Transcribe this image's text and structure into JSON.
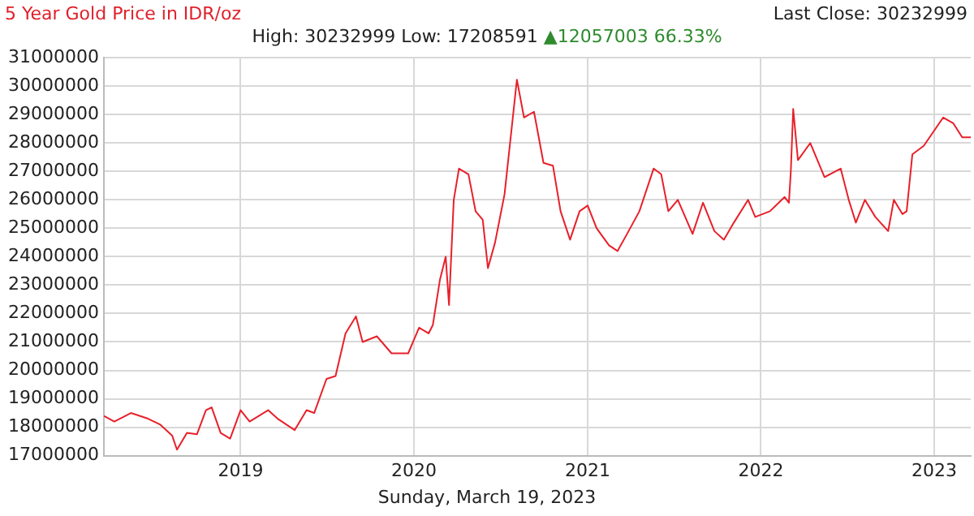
{
  "chart_data": {
    "type": "line",
    "title": "5 Year Gold Price in IDR/oz",
    "subtitle": "High: 30232999 Low: 17208591",
    "annotations": [
      "▲12057003 66.33%",
      "Last Close: 30232999",
      "Sunday, March 19, 2023"
    ],
    "x": [
      "2018-03-19",
      "2018-04-10",
      "2018-05-15",
      "2018-06-20",
      "2018-07-15",
      "2018-08-10",
      "2018-08-20",
      "2018-09-10",
      "2018-10-01",
      "2018-10-20",
      "2018-11-01",
      "2018-11-20",
      "2018-12-10",
      "2019-01-01",
      "2019-01-20",
      "2019-02-28",
      "2019-03-20",
      "2019-04-25",
      "2019-05-20",
      "2019-06-05",
      "2019-07-01",
      "2019-07-20",
      "2019-08-10",
      "2019-09-01",
      "2019-09-15",
      "2019-10-15",
      "2019-11-15",
      "2019-12-20",
      "2020-01-12",
      "2020-02-01",
      "2020-02-10",
      "2020-02-25",
      "2020-03-08",
      "2020-03-15",
      "2020-03-25",
      "2020-04-05",
      "2020-04-25",
      "2020-05-10",
      "2020-05-25",
      "2020-06-05",
      "2020-06-20",
      "2020-07-10",
      "2020-08-05",
      "2020-08-20",
      "2020-09-10",
      "2020-09-30",
      "2020-10-20",
      "2020-11-05",
      "2020-11-25",
      "2020-12-15",
      "2021-01-01",
      "2021-01-20",
      "2021-02-15",
      "2021-03-05",
      "2021-03-25",
      "2021-04-20",
      "2021-05-20",
      "2021-06-05",
      "2021-06-20",
      "2021-07-10",
      "2021-08-10",
      "2021-09-01",
      "2021-09-25",
      "2021-10-15",
      "2021-11-05",
      "2021-12-05",
      "2021-12-20",
      "2022-01-20",
      "2022-02-20",
      "2022-03-01",
      "2022-03-05",
      "2022-03-10",
      "2022-03-20",
      "2022-04-15",
      "2022-05-15",
      "2022-06-18",
      "2022-07-05",
      "2022-07-20",
      "2022-08-08",
      "2022-08-30",
      "2022-09-26",
      "2022-10-08",
      "2022-10-26",
      "2022-11-04",
      "2022-11-16",
      "2022-12-10",
      "2023-01-20",
      "2023-02-10",
      "2023-03-01",
      "2023-03-19"
    ],
    "series": [
      {
        "color": "#e8202a",
        "values": [
          18400000,
          18200000,
          18500000,
          18300000,
          18100000,
          17700000,
          17210000,
          17800000,
          17750000,
          18600000,
          18700000,
          17800000,
          17600000,
          18600000,
          18200000,
          18600000,
          18300000,
          17900000,
          18600000,
          18500000,
          19700000,
          19800000,
          21300000,
          21900000,
          21000000,
          21200000,
          20600000,
          20600000,
          21500000,
          21300000,
          21600000,
          23200000,
          24000000,
          22300000,
          26000000,
          27100000,
          26900000,
          25600000,
          25300000,
          23600000,
          24500000,
          26200000,
          30230000,
          28900000,
          29100000,
          27300000,
          27200000,
          25600000,
          24600000,
          25600000,
          25800000,
          25000000,
          24400000,
          24200000,
          24800000,
          25600000,
          27100000,
          26900000,
          25600000,
          26000000,
          24800000,
          25900000,
          24900000,
          24600000,
          25200000,
          26000000,
          25400000,
          25600000,
          26100000,
          25900000,
          27000000,
          29200000,
          27400000,
          28000000,
          26800000,
          27100000,
          26000000,
          25200000,
          26000000,
          25400000,
          24900000,
          26000000,
          25500000,
          25600000,
          27600000,
          27900000,
          28900000,
          28700000,
          28200000,
          28200000
        ]
      }
    ],
    "xlim": [
      "2018-03-19",
      "2023-03-19"
    ],
    "xticks": [
      "2019",
      "2020",
      "2021",
      "2022",
      "2023"
    ],
    "ylim": [
      17000000,
      31000000
    ],
    "yticks": [
      17000000,
      18000000,
      19000000,
      20000000,
      21000000,
      22000000,
      23000000,
      24000000,
      25000000,
      26000000,
      27000000,
      28000000,
      29000000,
      30000000,
      31000000
    ],
    "grid": true,
    "legend": false,
    "marker": "none",
    "line_style": "solid"
  }
}
